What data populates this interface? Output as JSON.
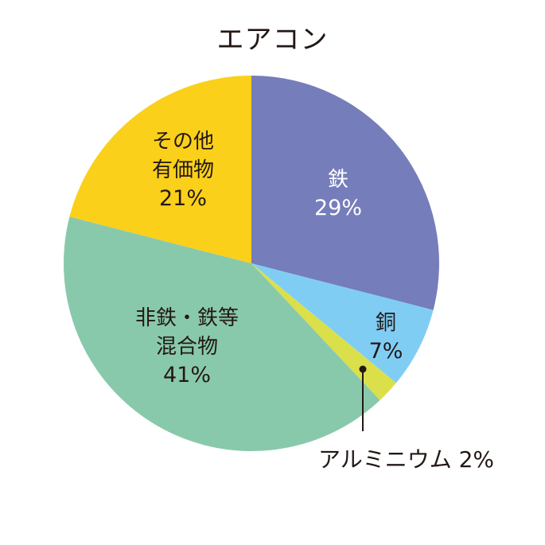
{
  "chart_data": {
    "type": "pie",
    "title": "エアコン",
    "start_angle_deg": 0,
    "direction": "clockwise",
    "slices": [
      {
        "label": "鉄",
        "value": 29,
        "display": "29%",
        "color": "#757dba",
        "text_color": "#ffffff"
      },
      {
        "label": "銅",
        "value": 7,
        "display": "7%",
        "color": "#80cdf3",
        "text_color": "#231815"
      },
      {
        "label": "アルミニウム",
        "value": 2,
        "display": "2%",
        "color": "#dbe04a",
        "text_color": "#231815"
      },
      {
        "label": "非鉄・鉄等混合物",
        "value": 41,
        "display": "41%",
        "color": "#89c9ab",
        "text_color": "#231815"
      },
      {
        "label": "その他有価物",
        "value": 21,
        "display": "21%",
        "color": "#fad01a",
        "text_color": "#231815"
      }
    ]
  },
  "title": "エアコン",
  "labels": {
    "iron": {
      "name": "鉄",
      "pct": "29%"
    },
    "copper": {
      "name": "銅",
      "pct": "7%"
    },
    "aluminium": {
      "text": "アルミニウム 2%"
    },
    "mixed": {
      "line1": "非鉄・鉄等",
      "line2": "混合物",
      "pct": "41%"
    },
    "other": {
      "line1": "その他",
      "line2": "有価物",
      "pct": "21%"
    }
  }
}
